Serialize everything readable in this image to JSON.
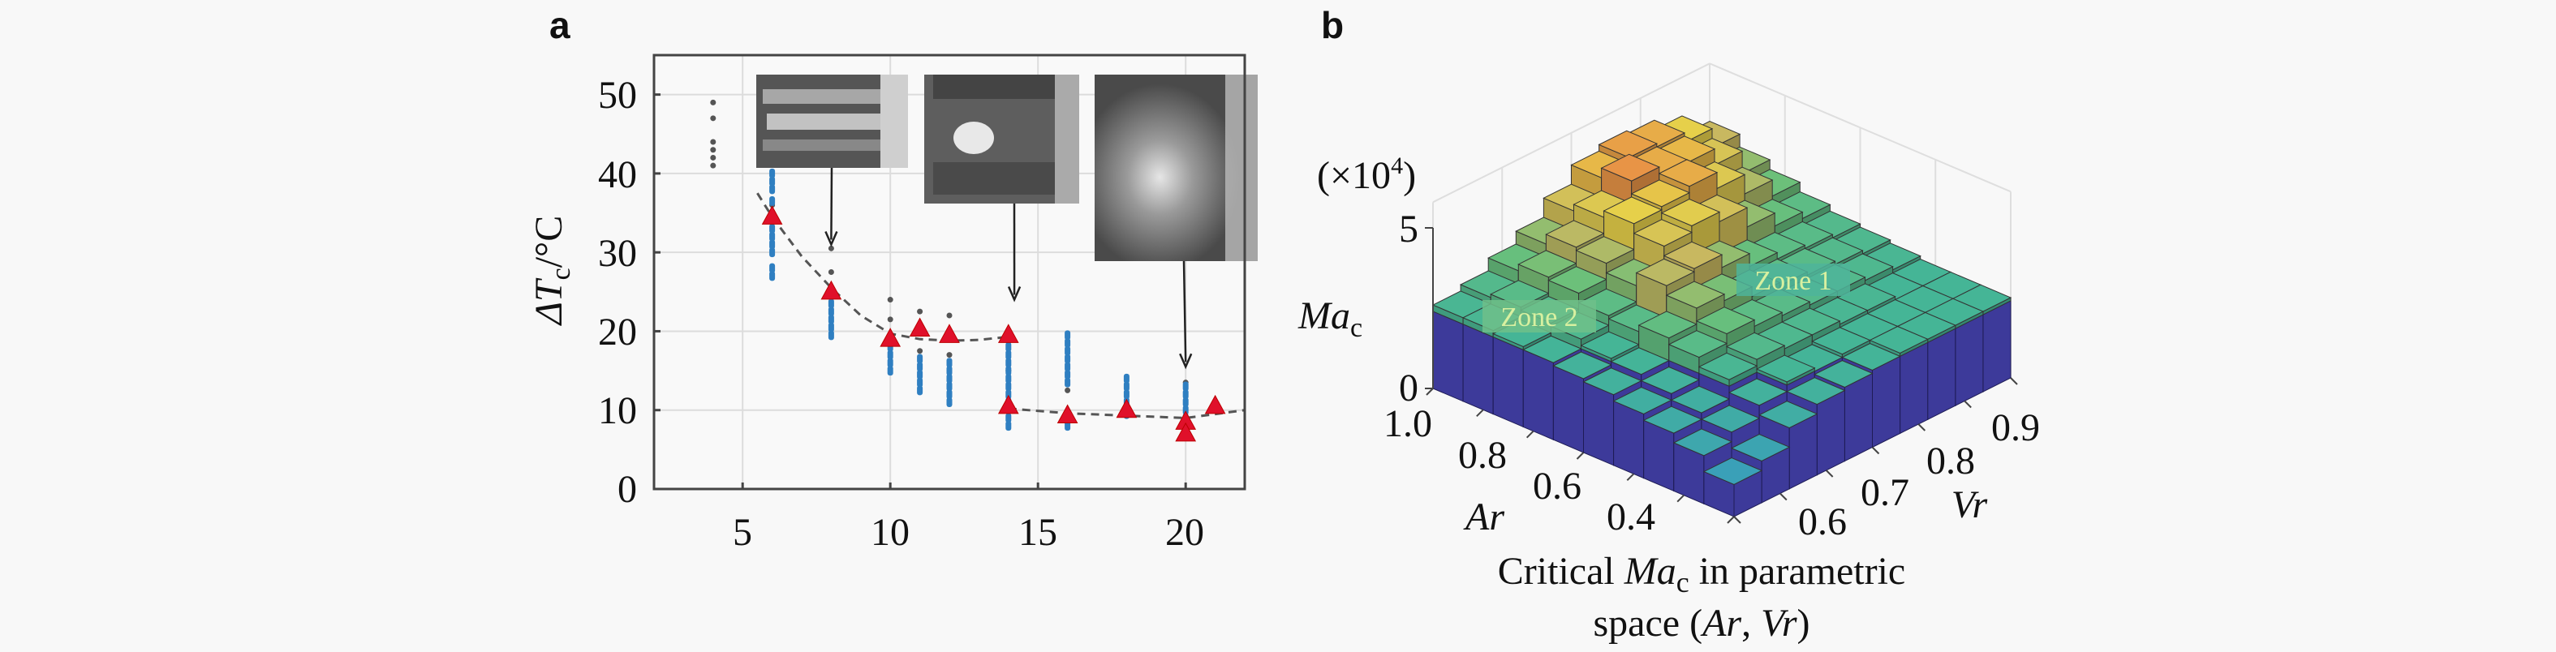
{
  "panel_labels": {
    "a": "a",
    "b": "b"
  },
  "chart_data": [
    {
      "panel": "a",
      "type": "scatter",
      "ylabel": {
        "main": "ΔT",
        "sub": "c",
        "unit": "/°C"
      },
      "xlabel": "",
      "xlim": [
        2,
        22
      ],
      "ylim": [
        0,
        55
      ],
      "xticks": [
        "5",
        "10",
        "15",
        "20"
      ],
      "yticks": [
        "0",
        "10",
        "20",
        "30",
        "40",
        "50"
      ],
      "grid": true,
      "colors": {
        "black_dots": "#555555",
        "blue_dots": "#2f7fc1",
        "triangles": "#e0102a",
        "fit": "#555555"
      },
      "series": [
        {
          "marker": "dot-black",
          "points": [
            [
              4,
              41
            ],
            [
              4,
              42
            ],
            [
              4,
              43
            ],
            [
              4,
              44
            ],
            [
              4,
              47
            ],
            [
              4,
              49
            ],
            [
              6,
              36
            ],
            [
              8,
              30.5
            ],
            [
              8,
              27.5
            ],
            [
              10,
              24
            ],
            [
              10,
              21.5
            ],
            [
              11,
              22.5
            ],
            [
              11,
              17.5
            ],
            [
              12,
              22
            ],
            [
              12,
              17
            ],
            [
              14,
              15
            ],
            [
              16,
              12.5
            ],
            [
              20,
              13.5
            ]
          ]
        },
        {
          "marker": "dot-blue",
          "points": [
            [
              6,
              27
            ],
            [
              6,
              28
            ],
            [
              6,
              30
            ],
            [
              6,
              31
            ],
            [
              6,
              32
            ],
            [
              6,
              33
            ],
            [
              6,
              36.5
            ],
            [
              6,
              38
            ],
            [
              6,
              39
            ],
            [
              6,
              40
            ],
            [
              8,
              19.5
            ],
            [
              8,
              20.5
            ],
            [
              8,
              21.5
            ],
            [
              8,
              22.5
            ],
            [
              8,
              23.5
            ],
            [
              8,
              24.5
            ],
            [
              10,
              15
            ],
            [
              10,
              16
            ],
            [
              10,
              17
            ],
            [
              10,
              18
            ],
            [
              11,
              12.5
            ],
            [
              11,
              13.5
            ],
            [
              11,
              14.5
            ],
            [
              11,
              15.5
            ],
            [
              11,
              16.5
            ],
            [
              12,
              11
            ],
            [
              12,
              12
            ],
            [
              12,
              13
            ],
            [
              12,
              14
            ],
            [
              12,
              15
            ],
            [
              12,
              16
            ],
            [
              14,
              8
            ],
            [
              14,
              9
            ],
            [
              14,
              11
            ],
            [
              14,
              12
            ],
            [
              14,
              13
            ],
            [
              14,
              14
            ],
            [
              14,
              15
            ],
            [
              14,
              16
            ],
            [
              14,
              17
            ],
            [
              14,
              18
            ],
            [
              14,
              19
            ],
            [
              16,
              8
            ],
            [
              16,
              9
            ],
            [
              16,
              13.5
            ],
            [
              16,
              14.5
            ],
            [
              16,
              15.5
            ],
            [
              16,
              16.5
            ],
            [
              16,
              17.5
            ],
            [
              16,
              18.5
            ],
            [
              16,
              19.5
            ],
            [
              18,
              9.5
            ],
            [
              18,
              11
            ],
            [
              18,
              12
            ],
            [
              18,
              13
            ],
            [
              18,
              14
            ],
            [
              20,
              8
            ],
            [
              20,
              9
            ],
            [
              20,
              10
            ],
            [
              20,
              11
            ],
            [
              20,
              12
            ],
            [
              20,
              13
            ]
          ]
        },
        {
          "marker": "triangle-red",
          "points": [
            [
              6,
              34.5
            ],
            [
              8,
              25
            ],
            [
              10,
              19
            ],
            [
              11,
              20.3
            ],
            [
              12,
              19.5
            ],
            [
              14,
              19.5
            ],
            [
              14,
              10.5
            ],
            [
              16,
              9.3
            ],
            [
              18,
              10
            ],
            [
              20,
              8.5
            ],
            [
              20,
              7
            ],
            [
              21,
              10.5
            ]
          ]
        }
      ],
      "fit_lines": [
        {
          "x": [
            5.5,
            6,
            7,
            8,
            9,
            10,
            11,
            12,
            13,
            14
          ],
          "y": [
            37.5,
            34.5,
            29.5,
            25.5,
            22,
            19.7,
            19,
            18.8,
            18.9,
            19.3
          ]
        },
        {
          "x": [
            14,
            16,
            18,
            20,
            21,
            22
          ],
          "y": [
            10.2,
            9.6,
            9.3,
            9,
            9.5,
            10
          ]
        }
      ],
      "insets": [
        {
          "name": "inset-image-1",
          "arrow_to": [
            8,
            31
          ]
        },
        {
          "name": "inset-image-2",
          "arrow_to": [
            14.2,
            24
          ]
        },
        {
          "name": "inset-image-3",
          "arrow_to": [
            20,
            15.5
          ]
        }
      ]
    },
    {
      "panel": "b",
      "type": "bar3d",
      "zlabel": {
        "main": "Ma",
        "sub": "c"
      },
      "zscale": "(×10",
      "zscale_exp": "4",
      "zscale_close": ")",
      "zlim": [
        0,
        5
      ],
      "zticks": [
        "0",
        "5"
      ],
      "xaxis": {
        "label": "Ar",
        "ticks": [
          "1.0",
          "0.8",
          "0.6",
          "0.4"
        ],
        "range": [
          1.0,
          0.4
        ]
      },
      "yaxis": {
        "label": "Vr",
        "ticks": [
          "0.6",
          "0.7",
          "0.8",
          "0.9"
        ],
        "range": [
          0.6,
          0.9
        ]
      },
      "annotations": [
        "Zone 2",
        "Zone 1"
      ],
      "caption": {
        "line1_a": "Critical ",
        "line1_ma": "Ma",
        "line1_sub": "c",
        "line1_b": " in parametric",
        "line2_a": "space (",
        "line2_ar": "Ar",
        "line2_comma": ", ",
        "line2_vr": "Vr",
        "line2_b": ")"
      },
      "base_color": "#3d3a9a",
      "heights_rows_Ar_cols_Vr": [
        [
          2.6,
          2.8,
          3.2,
          3.6,
          4.2,
          4.8,
          5.0,
          4.9,
          4.6,
          4.0
        ],
        [
          2.6,
          2.9,
          3.4,
          3.9,
          4.4,
          5.1,
          4.9,
          4.8,
          4.3,
          3.6
        ],
        [
          2.5,
          2.8,
          3.3,
          3.8,
          4.6,
          4.7,
          4.9,
          4.4,
          3.8,
          3.3
        ],
        [
          2.4,
          2.7,
          3.0,
          3.5,
          4.3,
          4.5,
          4.2,
          3.6,
          3.2,
          3.0
        ],
        [
          2.3,
          2.5,
          2.9,
          3.9,
          4.0,
          3.6,
          3.2,
          3.0,
          2.9,
          2.8
        ],
        [
          2.2,
          2.4,
          3.1,
          3.6,
          3.4,
          3.1,
          3.0,
          2.9,
          2.8,
          2.7
        ],
        [
          2.0,
          2.2,
          2.9,
          3.2,
          3.0,
          2.9,
          2.8,
          2.8,
          2.7,
          2.6
        ],
        [
          1.8,
          2.0,
          2.6,
          2.8,
          2.7,
          2.7,
          2.6,
          2.6,
          2.5,
          2.5
        ],
        [
          1.5,
          1.8,
          2.2,
          2.5,
          2.4,
          2.5,
          2.5,
          2.5,
          2.5,
          2.5
        ],
        [
          1.0,
          1.3,
          1.9,
          2.2,
          2.3,
          2.4,
          2.5,
          2.5,
          2.5,
          2.5
        ]
      ]
    }
  ]
}
